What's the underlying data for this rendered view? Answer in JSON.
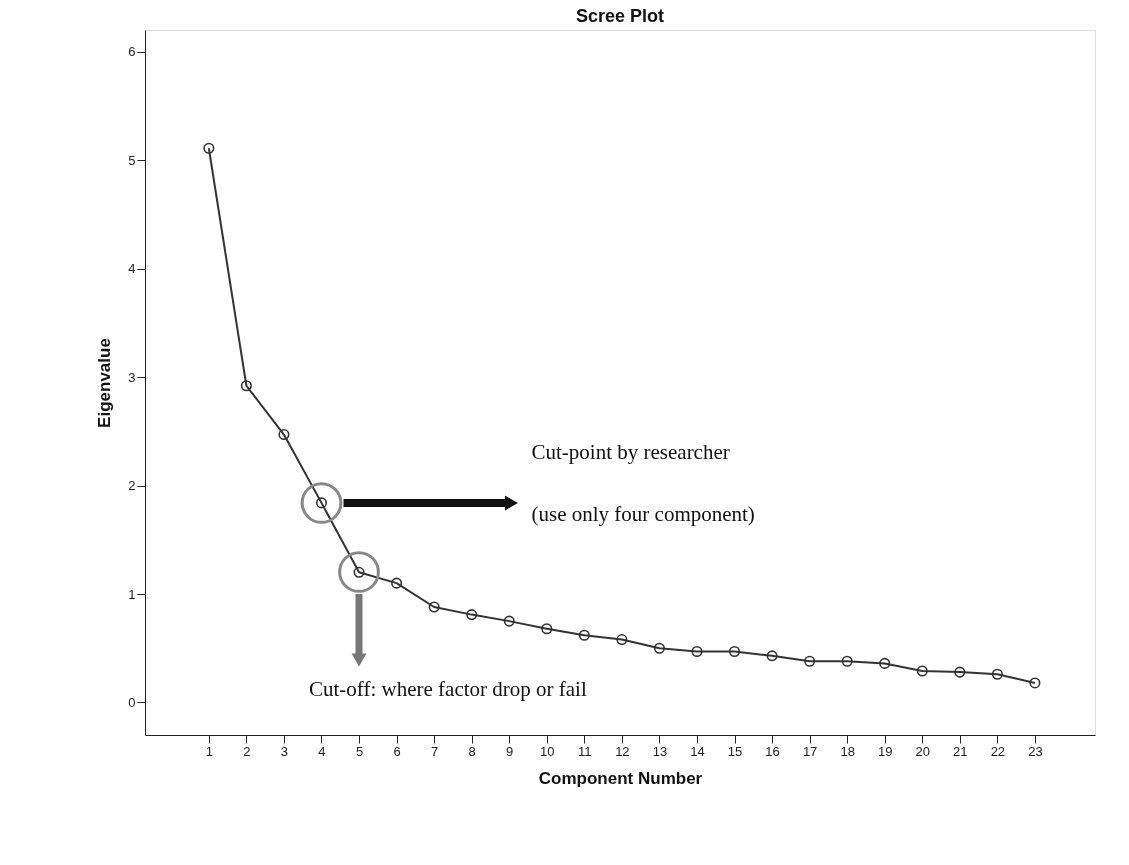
{
  "chart_data": {
    "type": "line",
    "title": "Scree Plot",
    "xlabel": "Component Number",
    "ylabel": "Eigenvalue",
    "x": [
      1,
      2,
      3,
      4,
      5,
      6,
      7,
      8,
      9,
      10,
      11,
      12,
      13,
      14,
      15,
      16,
      17,
      18,
      19,
      20,
      21,
      22,
      23
    ],
    "series": [
      {
        "color": "#333333",
        "values": [
          5.11,
          2.92,
          2.47,
          1.84,
          1.2,
          1.1,
          0.88,
          0.81,
          0.75,
          0.68,
          0.62,
          0.58,
          0.5,
          0.47,
          0.47,
          0.43,
          0.38,
          0.38,
          0.36,
          0.29,
          0.28,
          0.26,
          0.18
        ]
      }
    ],
    "xlim": [
      -0.7,
      24.6
    ],
    "xticks": [
      1,
      2,
      3,
      4,
      5,
      6,
      7,
      8,
      9,
      10,
      11,
      12,
      13,
      14,
      15,
      16,
      17,
      18,
      19,
      20,
      21,
      22,
      23
    ],
    "ylim": [
      -0.3,
      6.2
    ],
    "yticks": [
      0,
      1,
      2,
      3,
      4,
      5,
      6
    ],
    "grid": false,
    "marker": "circle",
    "line_style": "solid",
    "annotations": [
      "Cut-point by researcher",
      "(use only four component)",
      "Cut-off: where factor drop or fail"
    ]
  }
}
